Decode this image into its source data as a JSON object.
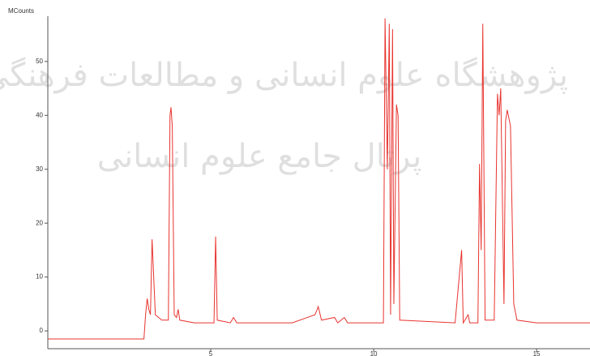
{
  "chart_data": {
    "type": "line",
    "y_label": "MCounts",
    "watermark": [
      "پژوهشگاه علوم انسانی و مطالعات فرهنگی",
      "پرتال جامع علوم انسانی"
    ],
    "x": [
      0,
      2.95,
      3.0,
      3.05,
      3.1,
      3.15,
      3.2,
      3.25,
      3.3,
      3.4,
      3.5,
      3.7,
      3.75,
      3.78,
      3.82,
      3.88,
      3.95,
      4.0,
      4.05,
      4.5,
      5.1,
      5.15,
      5.2,
      5.6,
      5.7,
      5.8,
      7.5,
      8.2,
      8.3,
      8.4,
      8.8,
      8.9,
      9.1,
      9.2,
      10.3,
      10.35,
      10.42,
      10.48,
      10.52,
      10.58,
      10.62,
      10.7,
      10.75,
      10.8,
      12.5,
      12.7,
      12.75,
      12.9,
      12.95,
      13.2,
      13.25,
      13.3,
      13.35,
      13.42,
      13.7,
      13.8,
      13.85,
      13.9,
      14.0,
      14.05,
      14.1,
      14.2,
      14.3,
      14.4,
      15,
      16.7
    ],
    "values": [
      -1.5,
      -1.5,
      3,
      6,
      4,
      3,
      17,
      10,
      3,
      2.5,
      2,
      2,
      40,
      41.5,
      38,
      3,
      2.5,
      4,
      2,
      1.5,
      1.5,
      17.5,
      2,
      1.5,
      2.5,
      1.5,
      1.5,
      3,
      4.5,
      2,
      2.5,
      1.5,
      2.5,
      1.5,
      1.5,
      58,
      30,
      57,
      3,
      56,
      5,
      42,
      40,
      2,
      1.5,
      15,
      1.5,
      3,
      1.5,
      1.5,
      31,
      15,
      57,
      2,
      2,
      44,
      40,
      45,
      5,
      39,
      41,
      38,
      5,
      2,
      1.5,
      1.5
    ],
    "color": "#e8332e",
    "xlim": [
      0,
      16.64
    ],
    "ylim": [
      -3.3,
      58.4
    ],
    "xticks": [
      5,
      10,
      15
    ],
    "yticks": [
      0,
      10,
      20,
      30,
      40,
      50
    ]
  }
}
